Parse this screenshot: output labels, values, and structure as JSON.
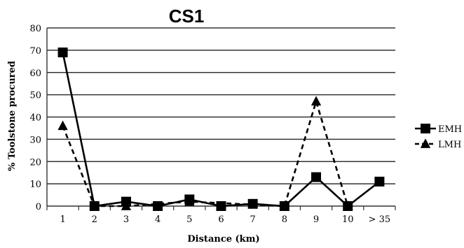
{
  "chart_data": {
    "type": "line",
    "title": "CS1",
    "xlabel": "Distance (km)",
    "ylabel": "% Toolstone procured",
    "categories": [
      "1",
      "2",
      "3",
      "4",
      "5",
      "6",
      "7",
      "8",
      "9",
      "10",
      "> 35"
    ],
    "ylim": [
      0,
      80
    ],
    "yticks": [
      0,
      10,
      20,
      30,
      40,
      50,
      60,
      70,
      80
    ],
    "grid": true,
    "legend_position": "right",
    "series": [
      {
        "name": "EMH",
        "marker": "square",
        "line_style": "solid",
        "values": [
          69,
          0,
          2,
          0,
          3,
          0,
          1,
          0,
          13,
          0,
          11
        ]
      },
      {
        "name": "LMH",
        "marker": "triangle",
        "line_style": "dashed",
        "values": [
          36,
          0,
          0,
          null,
          2,
          null,
          null,
          0,
          47,
          0,
          null
        ]
      }
    ],
    "colors": {
      "line": "#000000",
      "grid": "#333333",
      "background": "#ffffff"
    }
  }
}
